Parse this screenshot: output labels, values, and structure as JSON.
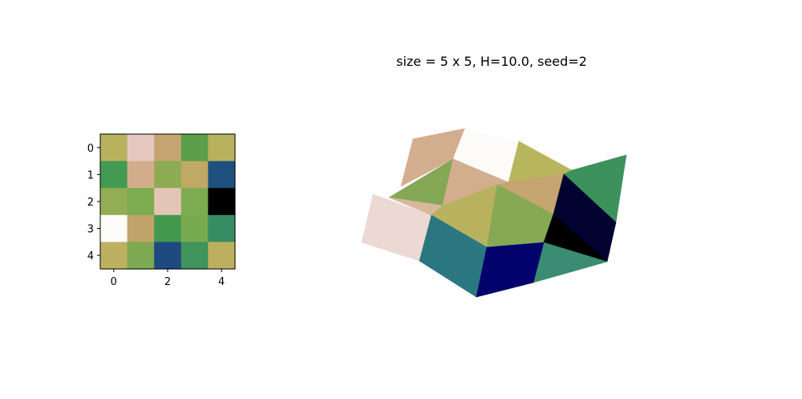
{
  "chart_data": [
    {
      "type": "heatmap",
      "title": "",
      "xlabel": "",
      "ylabel": "",
      "x_ticks": [
        "0",
        "2",
        "4"
      ],
      "y_ticks": [
        "0",
        "1",
        "2",
        "3",
        "4"
      ],
      "grid": false,
      "colors": [
        [
          "#b8b25f",
          "#e6c7bf",
          "#c6a470",
          "#5a9e4a",
          "#b8b25f"
        ],
        [
          "#449a53",
          "#d3ad8b",
          "#8dab53",
          "#c0a865",
          "#1e5080"
        ],
        [
          "#93ad54",
          "#7dab50",
          "#e3c5b6",
          "#7cab50",
          "#000000"
        ],
        [
          "#fdfbfa",
          "#c2a36a",
          "#43994e",
          "#78aa50",
          "#378d63"
        ],
        [
          "#bdb061",
          "#7ca951",
          "#1f4a80",
          "#3f935b",
          "#bcb05e"
        ]
      ]
    },
    {
      "type": "surface3d",
      "title": "size = 5 x 5, H=10.0, seed=2",
      "grid": false,
      "axes": "off",
      "faces": [
        {
          "points": [
            [
              451,
              302
            ],
            [
              465,
              242
            ],
            [
              538,
              268
            ],
            [
              523,
              325
            ]
          ],
          "color": "#ecd9d4"
        },
        {
          "points": [
            [
              500,
              232
            ],
            [
              515,
              173
            ],
            [
              580,
              160
            ],
            [
              565,
              198
            ]
          ],
          "color": "#d3ae8e"
        },
        {
          "points": [
            [
              565,
              198
            ],
            [
              580,
              160
            ],
            [
              647,
              176
            ],
            [
              634,
              227
            ]
          ],
          "color": "#fdfbfa"
        },
        {
          "points": [
            [
              634,
              227
            ],
            [
              647,
              176
            ],
            [
              713,
              212
            ],
            [
              703,
              217
            ]
          ],
          "color": "#b8b65c"
        },
        {
          "points": [
            [
              703,
              217
            ],
            [
              713,
              212
            ],
            [
              781,
              193
            ],
            [
              768,
              277
            ],
            [
              690,
              250
            ]
          ],
          "color": "#3d925c"
        },
        {
          "points": [
            [
              485,
              246
            ],
            [
              565,
              198
            ],
            [
              552,
              256
            ]
          ],
          "color": "#84a855"
        },
        {
          "points": [
            [
              552,
              256
            ],
            [
              565,
              198
            ],
            [
              634,
              227
            ],
            [
              620,
              230
            ]
          ],
          "color": "#d3ae8e"
        },
        {
          "points": [
            [
              620,
              230
            ],
            [
              634,
              227
            ],
            [
              703,
              217
            ],
            [
              690,
              267
            ]
          ],
          "color": "#c6a46f"
        },
        {
          "points": [
            [
              485,
              246
            ],
            [
              552,
              256
            ],
            [
              538,
              268
            ]
          ],
          "color": "#d7b89a"
        },
        {
          "points": [
            [
              538,
              268
            ],
            [
              552,
              256
            ],
            [
              620,
              230
            ],
            [
              607,
              308
            ]
          ],
          "color": "#b8b25e"
        },
        {
          "points": [
            [
              607,
              308
            ],
            [
              620,
              230
            ],
            [
              690,
              267
            ],
            [
              678,
              302
            ]
          ],
          "color": "#86a955"
        },
        {
          "points": [
            [
              690,
              267
            ],
            [
              703,
              217
            ],
            [
              768,
              277
            ],
            [
              757,
              326
            ]
          ],
          "color": "#020230"
        },
        {
          "points": [
            [
              678,
              302
            ],
            [
              690,
              267
            ],
            [
              757,
              326
            ]
          ],
          "color": "#000000"
        },
        {
          "points": [
            [
              665,
              352
            ],
            [
              678,
              302
            ],
            [
              757,
              326
            ]
          ],
          "color": "#3a8c73"
        },
        {
          "points": [
            [
              523,
              325
            ],
            [
              538,
              268
            ],
            [
              607,
              308
            ],
            [
              594,
              370
            ]
          ],
          "color": "#2a7780"
        },
        {
          "points": [
            [
              594,
              370
            ],
            [
              607,
              308
            ],
            [
              678,
              302
            ],
            [
              665,
              352
            ]
          ],
          "color": "#03026d"
        }
      ]
    }
  ]
}
